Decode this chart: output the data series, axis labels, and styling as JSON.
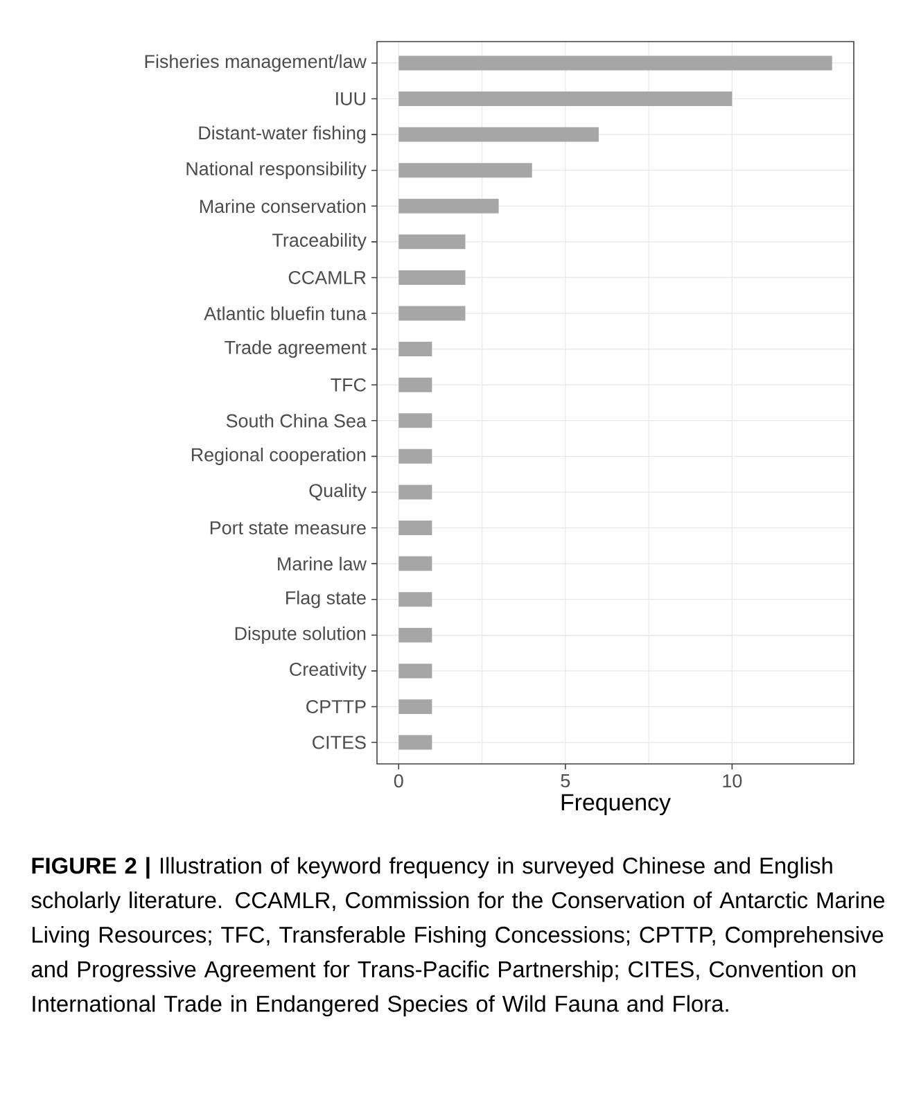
{
  "chart_data": {
    "type": "bar",
    "orientation": "horizontal",
    "xlabel": "Frequency",
    "categories": [
      "Fisheries management/law",
      "IUU",
      "Distant-water fishing",
      "National responsibility",
      "Marine conservation",
      "Traceability",
      "CCAMLR",
      "Atlantic bluefin tuna",
      "Trade agreement",
      "TFC",
      "South China Sea",
      "Regional cooperation",
      "Quality",
      "Port state measure",
      "Marine law",
      "Flag state",
      "Dispute solution",
      "Creativity",
      "CPTTP",
      "CITES"
    ],
    "values": [
      13,
      10,
      6,
      4,
      3,
      2,
      2,
      2,
      1,
      1,
      1,
      1,
      1,
      1,
      1,
      1,
      1,
      1,
      1,
      1
    ],
    "color": "#a6a6a6",
    "xlim": [
      -0.65,
      13.65
    ],
    "xticks": [
      0,
      5,
      10
    ],
    "grid": true,
    "annotations": [
      "**FIGURE 2 |** Illustration of keyword frequency in surveyed Chinese and English scholarly literature. CCAMLR, Commission for the Conservation of Antarctic Marine Living Resources; TFC, Transferable Fishing Concessions; CPTTP, Comprehensive and Progressive Agreement for Trans-Pacific Partnership; CITES, Convention on International Trade in Endangered Species of Wild Fauna and Flora."
    ]
  }
}
